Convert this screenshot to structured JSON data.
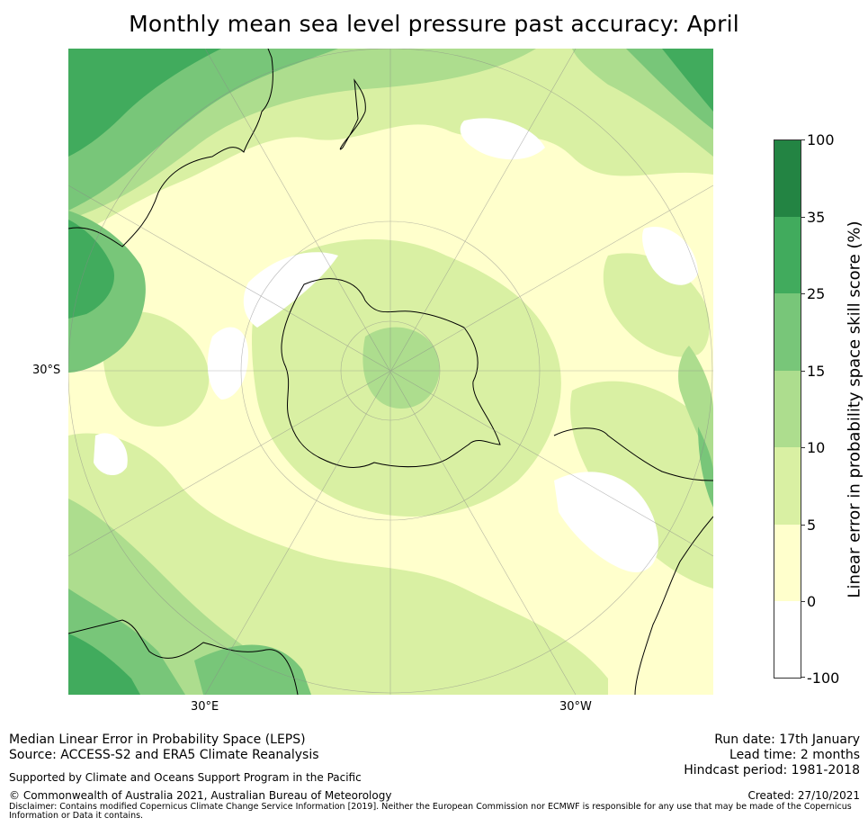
{
  "title": "Monthly mean sea level pressure past accuracy: April",
  "map": {
    "projection": "south-polar-stereographic",
    "lat_labels": [
      "30°S"
    ],
    "lon_labels": [
      "30°E",
      "30°W"
    ]
  },
  "colorbar": {
    "label": "Linear error in probability space skill score (%)",
    "ticks": [
      "100",
      "35",
      "25",
      "15",
      "10",
      "5",
      "0",
      "-100"
    ],
    "bins": [
      {
        "range": "35 to 100",
        "color": "#238443"
      },
      {
        "range": "25 to 35",
        "color": "#41ab5d"
      },
      {
        "range": "15 to 25",
        "color": "#78c679"
      },
      {
        "range": "10 to 15",
        "color": "#addd8e"
      },
      {
        "range": "5 to 10",
        "color": "#d9f0a3"
      },
      {
        "range": "0 to 5",
        "color": "#ffffcc"
      },
      {
        "range": "-100 to 0",
        "color": "#ffffff"
      }
    ]
  },
  "footer": {
    "method": "Median Linear Error in Probability Space (LEPS)",
    "source": "Source: ACCESS-S2 and ERA5 Climate Reanalysis",
    "run_date": "Run date: 17th January",
    "lead_time": "Lead time: 2 months",
    "hindcast": "Hindcast period: 1981-2018",
    "support": "Supported by Climate and Oceans Support Program in the Pacific",
    "copyright": "© Commonwealth of Australia 2021, Australian Bureau of Meteorology",
    "created": "Created: 27/10/2021",
    "disclaimer": "Disclaimer: Contains modified Copernicus Climate Change Service Information [2019]. Neither the European Commission nor ECMWF is responsible for any use that may be made of the Copernicus Information or Data it contains."
  }
}
